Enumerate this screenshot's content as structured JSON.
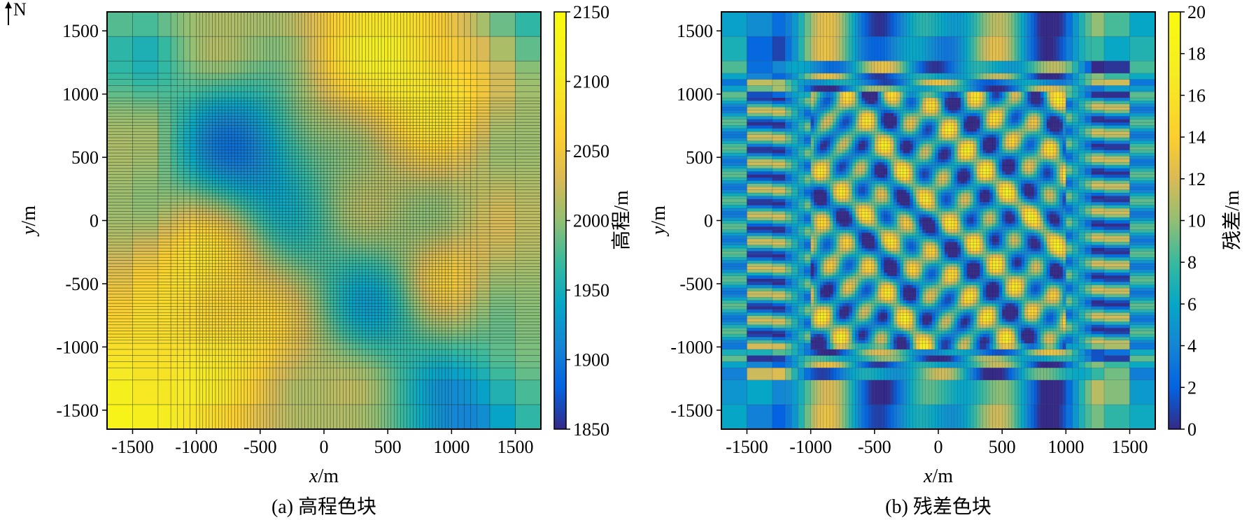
{
  "north_arrow": {
    "label": "N"
  },
  "panels": [
    {
      "id": "a",
      "caption": "(a) 高程色块",
      "xlabel_var": "x",
      "xlabel_unit": "/m",
      "ylabel_var": "y",
      "ylabel_unit": "/m",
      "colorbar_label": "高程/m"
    },
    {
      "id": "b",
      "caption": "(b) 残差色块",
      "xlabel_var": "x",
      "xlabel_unit": "/m",
      "ylabel_var": "y",
      "ylabel_unit": "/m",
      "colorbar_label": "残差/m"
    }
  ],
  "chart_data": [
    {
      "type": "heatmap",
      "title": "(a) 高程色块",
      "xlabel": "x/m",
      "ylabel": "y/m",
      "xlim": [
        -1700,
        1700
      ],
      "ylim": [
        -1650,
        1650
      ],
      "xticks": [
        -1500,
        -1000,
        -500,
        0,
        500,
        1000,
        1500
      ],
      "xtick_labels": [
        "-1500",
        "-1000",
        "-500",
        "0",
        "500",
        "1000",
        "1500"
      ],
      "yticks": [
        1500,
        1000,
        500,
        0,
        -500,
        -1000,
        -1500
      ],
      "ytick_labels": [
        "1500",
        "1000",
        "500",
        "0",
        "-500",
        "-1000",
        "-1500"
      ],
      "colorbar": {
        "label": "高程/m",
        "range": [
          1850,
          2150
        ],
        "ticks": [
          2150,
          2100,
          2050,
          2000,
          1950,
          1900,
          1850
        ],
        "tick_labels": [
          "2150",
          "2100",
          "2050",
          "2000",
          "1950",
          "1900",
          "1850"
        ],
        "colormap": "parula"
      },
      "grid": "non-uniform cells: coarse at edges (|coord|>1000 m), fine in centre",
      "features": {
        "high_zones": [
          "southwest corner (~2130 m)",
          "north-centre x 300–800 (~2110 m)",
          "west band x -1100 to -700",
          "east spot x 800–1000, y -300 to -700"
        ],
        "low_zones": [
          "west-centre x -900 to -400, y 300–800 (~1900 m)",
          "south-centre x 300–700, y -500 to -900 (~1920 m)",
          "southeast x 900–1300, y -1500 (~1900 m)"
        ]
      }
    },
    {
      "type": "heatmap",
      "title": "(b) 残差色块",
      "xlabel": "x/m",
      "ylabel": "y/m",
      "xlim": [
        -1700,
        1700
      ],
      "ylim": [
        -1650,
        1650
      ],
      "xticks": [
        -1500,
        -1000,
        -500,
        0,
        500,
        1000,
        1500
      ],
      "xtick_labels": [
        "-1500",
        "-1000",
        "-500",
        "0",
        "500",
        "1000",
        "1500"
      ],
      "yticks": [
        1500,
        1000,
        500,
        0,
        -500,
        -1000,
        -1500
      ],
      "ytick_labels": [
        "1500",
        "1000",
        "500",
        "0",
        "-500",
        "-1000",
        "-1500"
      ],
      "colorbar": {
        "label": "残差/m",
        "range": [
          0,
          20
        ],
        "ticks": [
          20,
          18,
          16,
          14,
          12,
          10,
          8,
          6,
          4,
          2,
          0
        ],
        "tick_labels": [
          "20",
          "18",
          "16",
          "14",
          "12",
          "10",
          "8",
          "6",
          "4",
          "2",
          "0"
        ],
        "colormap": "parula"
      },
      "grid": "non-uniform cells: coarse at edges, fine in centre with banded oscillating residuals",
      "features": {
        "value_range_observed": [
          0,
          20
        ],
        "typical": "0–8 m with banded ridges up to ~16 m in the interior"
      }
    }
  ]
}
